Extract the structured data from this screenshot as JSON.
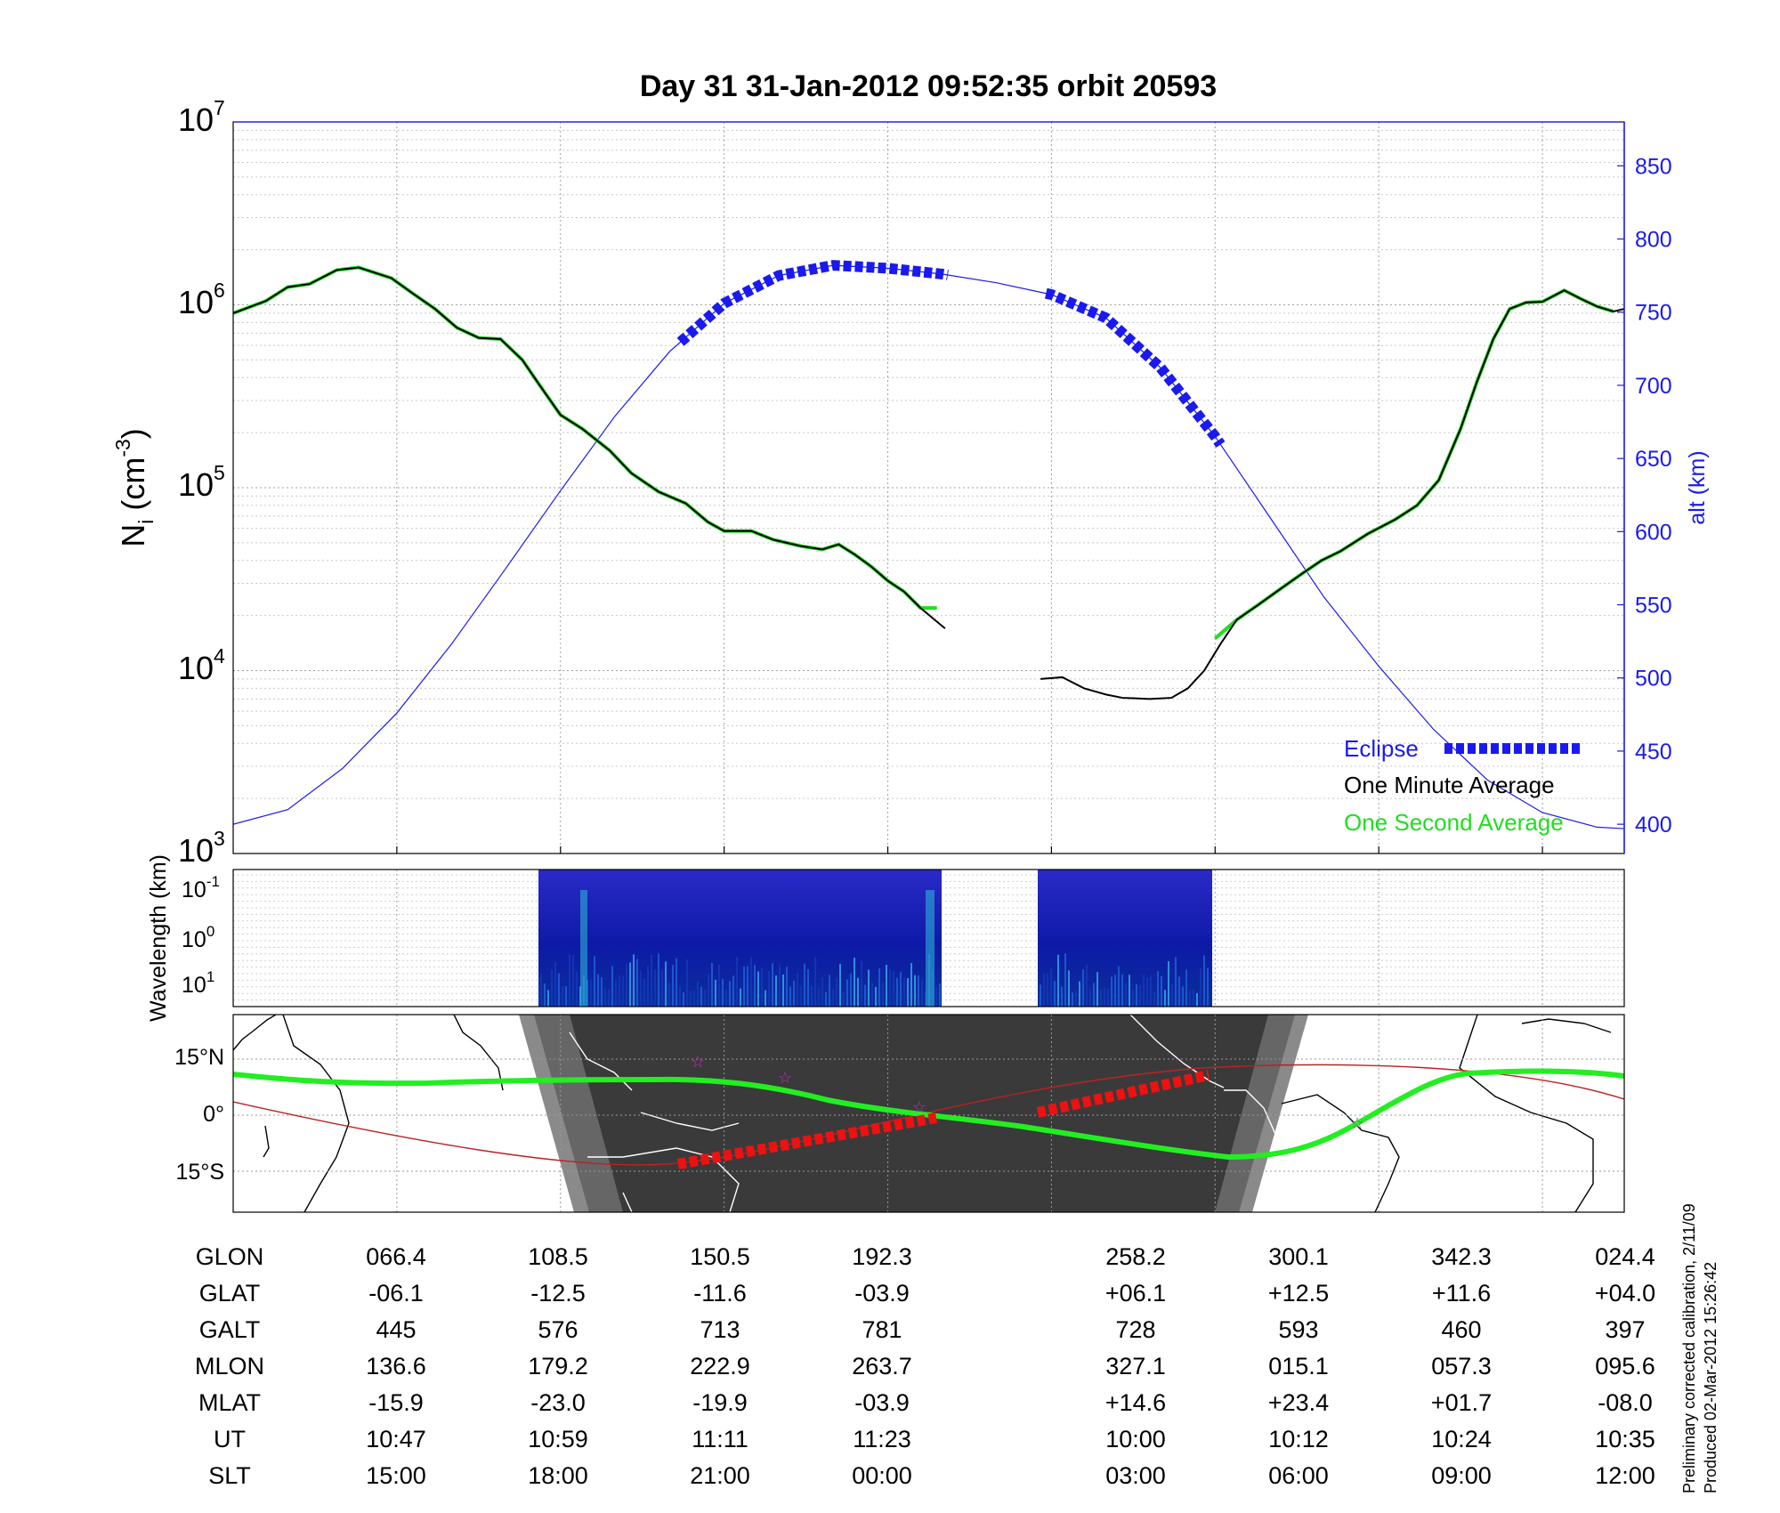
{
  "title": "Day 31  31-Jan-2012 09:52:35   orbit 20593",
  "colors": {
    "density_minute": "#000000",
    "density_second": "#22dd22",
    "altitude": "#1a1aee",
    "eclipse": "#1a1aee",
    "track": "#22ee22",
    "track_eclipse": "#ee1111",
    "dip_equator": "#bb2222",
    "night": "#3a3a3a"
  },
  "main_panel": {
    "y_label_main": "N",
    "y_label_sub": "i",
    "y_label_unit": " (cm",
    "y_label_exp": "-3",
    "y_label_close": ")",
    "y_ticks": [
      {
        "base": "10",
        "exp": "3"
      },
      {
        "base": "10",
        "exp": "4"
      },
      {
        "base": "10",
        "exp": "5"
      },
      {
        "base": "10",
        "exp": "6"
      },
      {
        "base": "10",
        "exp": "7"
      }
    ],
    "y2_label": "alt (km)",
    "y2_ticks": [
      "400",
      "450",
      "500",
      "550",
      "600",
      "650",
      "700",
      "750",
      "800",
      "850"
    ]
  },
  "legend": {
    "eclipse": "Eclipse",
    "minute": "One Minute Average",
    "second": "One Second Average"
  },
  "spectrogram": {
    "y_label": "Wavelength (km)",
    "y_ticks": [
      {
        "base": "10",
        "exp": "-1"
      },
      {
        "base": "10",
        "exp": "0"
      },
      {
        "base": "10",
        "exp": "1"
      }
    ]
  },
  "map": {
    "lat_labels": [
      "15°N",
      "0°",
      "15°S"
    ]
  },
  "table": {
    "row_labels": [
      "GLON",
      "GLAT",
      "GALT",
      "MLON",
      "MLAT",
      "UT",
      "SLT"
    ],
    "rows": [
      [
        "066.4",
        "108.5",
        "150.5",
        "192.3",
        "258.2",
        "300.1",
        "342.3",
        "024.4"
      ],
      [
        "-06.1",
        "-12.5",
        "-11.6",
        "-03.9",
        "+06.1",
        "+12.5",
        "+11.6",
        "+04.0"
      ],
      [
        "445",
        "576",
        "713",
        "781",
        "728",
        "593",
        "460",
        "397"
      ],
      [
        "136.6",
        "179.2",
        "222.9",
        "263.7",
        "327.1",
        "015.1",
        "057.3",
        "095.6"
      ],
      [
        "-15.9",
        "-23.0",
        "-19.9",
        "-03.9",
        "+14.6",
        "+23.4",
        "+01.7",
        "-08.0"
      ],
      [
        "10:47",
        "10:59",
        "11:11",
        "11:23",
        "10:00",
        "10:12",
        "10:24",
        "10:35"
      ],
      [
        "15:00",
        "18:00",
        "21:00",
        "00:00",
        "03:00",
        "06:00",
        "09:00",
        "12:00"
      ]
    ]
  },
  "footer": {
    "line1": "Preliminary corrected calibration, 2/11/09",
    "line2": "Produced 02-Mar-2012 15:26:42"
  },
  "chart_data": {
    "type": "line",
    "title": "Day 31  31-Jan-2012 09:52:35   orbit 20593",
    "x_label": "SLT",
    "x_ticks": [
      "15:00",
      "18:00",
      "21:00",
      "00:00",
      "03:00",
      "06:00",
      "09:00",
      "12:00"
    ],
    "y_scale": "log",
    "ylim": [
      1000,
      10000000
    ],
    "y2_label": "alt (km)",
    "y2lim": [
      380,
      880
    ],
    "series": [
      {
        "name": "One Minute Average",
        "segments": [
          [
            [
              12.0,
              900000
            ],
            [
              12.6,
              1050000
            ],
            [
              13.0,
              1250000
            ],
            [
              13.4,
              1300000
            ],
            [
              13.9,
              1550000
            ],
            [
              14.3,
              1600000
            ],
            [
              14.9,
              1400000
            ],
            [
              15.3,
              1150000
            ],
            [
              15.7,
              950000
            ],
            [
              16.1,
              750000
            ],
            [
              16.5,
              660000
            ],
            [
              16.9,
              650000
            ],
            [
              17.3,
              500000
            ],
            [
              17.6,
              370000
            ],
            [
              18.0,
              250000
            ],
            [
              18.4,
              210000
            ],
            [
              18.9,
              160000
            ],
            [
              19.3,
              120000
            ],
            [
              19.8,
              95000
            ],
            [
              20.3,
              82000
            ],
            [
              20.7,
              65000
            ],
            [
              21.0,
              58000
            ],
            [
              21.5,
              58000
            ],
            [
              21.9,
              52000
            ],
            [
              22.4,
              48000
            ],
            [
              22.8,
              46000
            ],
            [
              23.1,
              49000
            ],
            [
              23.4,
              43000
            ],
            [
              23.7,
              37000
            ],
            [
              24.0,
              31000
            ],
            [
              24.3,
              27000
            ],
            [
              24.6,
              22000
            ],
            [
              25.05,
              17000
            ]
          ],
          [
            [
              26.8,
              9000
            ],
            [
              27.2,
              9200
            ],
            [
              27.6,
              8000
            ],
            [
              28.0,
              7400
            ],
            [
              28.3,
              7100
            ],
            [
              28.8,
              7000
            ],
            [
              29.2,
              7100
            ],
            [
              29.5,
              8000
            ],
            [
              29.8,
              10000
            ],
            [
              30.1,
              14000
            ],
            [
              30.4,
              19000
            ],
            [
              30.8,
              23000
            ],
            [
              31.2,
              28000
            ],
            [
              31.6,
              34000
            ],
            [
              31.95,
              40000
            ],
            [
              32.3,
              45000
            ],
            [
              32.8,
              56000
            ],
            [
              33.3,
              67000
            ],
            [
              33.7,
              80000
            ],
            [
              34.1,
              110000
            ],
            [
              34.5,
              210000
            ],
            [
              34.8,
              380000
            ],
            [
              35.1,
              650000
            ],
            [
              35.4,
              950000
            ],
            [
              35.7,
              1030000
            ],
            [
              36.0,
              1040000
            ],
            [
              36.4,
              1200000
            ],
            [
              36.7,
              1080000
            ],
            [
              37.0,
              980000
            ],
            [
              37.3,
              920000
            ],
            [
              37.5,
              950000
            ]
          ]
        ]
      },
      {
        "name": "One Second Average",
        "segments": [
          [
            [
              12.0,
              900000
            ],
            [
              12.6,
              1050000
            ],
            [
              13.0,
              1250000
            ],
            [
              13.4,
              1300000
            ],
            [
              13.9,
              1550000
            ],
            [
              14.3,
              1600000
            ],
            [
              14.9,
              1400000
            ],
            [
              15.3,
              1150000
            ],
            [
              15.7,
              950000
            ],
            [
              16.1,
              750000
            ],
            [
              16.5,
              660000
            ],
            [
              16.9,
              650000
            ],
            [
              17.3,
              500000
            ],
            [
              17.6,
              370000
            ],
            [
              18.0,
              250000
            ],
            [
              18.4,
              210000
            ],
            [
              18.9,
              160000
            ],
            [
              19.3,
              120000
            ],
            [
              19.8,
              95000
            ],
            [
              20.3,
              82000
            ],
            [
              20.7,
              65000
            ],
            [
              21.0,
              58000
            ],
            [
              21.5,
              58000
            ],
            [
              21.9,
              52000
            ],
            [
              22.4,
              48000
            ],
            [
              22.8,
              46000
            ],
            [
              23.1,
              49000
            ],
            [
              23.4,
              43000
            ],
            [
              23.7,
              37000
            ],
            [
              24.0,
              31000
            ],
            [
              24.3,
              27000
            ],
            [
              24.6,
              22000
            ],
            [
              24.9,
              22000
            ]
          ],
          [
            [
              30.0,
              15000
            ],
            [
              30.4,
              19000
            ],
            [
              30.8,
              23000
            ],
            [
              31.2,
              28000
            ],
            [
              31.6,
              34000
            ],
            [
              31.95,
              40000
            ],
            [
              32.3,
              45000
            ],
            [
              32.8,
              56000
            ],
            [
              33.3,
              67000
            ],
            [
              33.7,
              80000
            ],
            [
              34.1,
              110000
            ],
            [
              34.5,
              210000
            ],
            [
              34.8,
              380000
            ],
            [
              35.1,
              650000
            ],
            [
              35.4,
              950000
            ],
            [
              35.7,
              1030000
            ],
            [
              36.0,
              1040000
            ],
            [
              36.4,
              1200000
            ],
            [
              36.7,
              1080000
            ],
            [
              37.0,
              980000
            ],
            [
              37.3,
              920000
            ]
          ]
        ]
      },
      {
        "name": "alt (km)",
        "axis": "right",
        "values": [
          [
            12.0,
            400
          ],
          [
            13.0,
            410
          ],
          [
            14.0,
            438
          ],
          [
            15.0,
            476
          ],
          [
            16.0,
            523
          ],
          [
            17.0,
            575
          ],
          [
            18.0,
            628
          ],
          [
            19.0,
            679
          ],
          [
            20.0,
            723
          ],
          [
            21.0,
            756
          ],
          [
            22.0,
            775
          ],
          [
            23.0,
            782
          ],
          [
            24.0,
            780
          ],
          [
            25.0,
            776
          ],
          [
            26.0,
            770
          ],
          [
            27.0,
            762
          ],
          [
            28.0,
            746
          ],
          [
            29.0,
            712
          ],
          [
            30.0,
            665
          ],
          [
            31.0,
            610
          ],
          [
            32.0,
            555
          ],
          [
            33.0,
            508
          ],
          [
            34.0,
            465
          ],
          [
            35.0,
            430
          ],
          [
            36.0,
            408
          ],
          [
            37.0,
            398
          ],
          [
            37.5,
            397
          ]
        ]
      }
    ],
    "eclipse_intervals": [
      [
        20.2,
        25.1
      ],
      [
        26.9,
        30.1
      ]
    ]
  }
}
